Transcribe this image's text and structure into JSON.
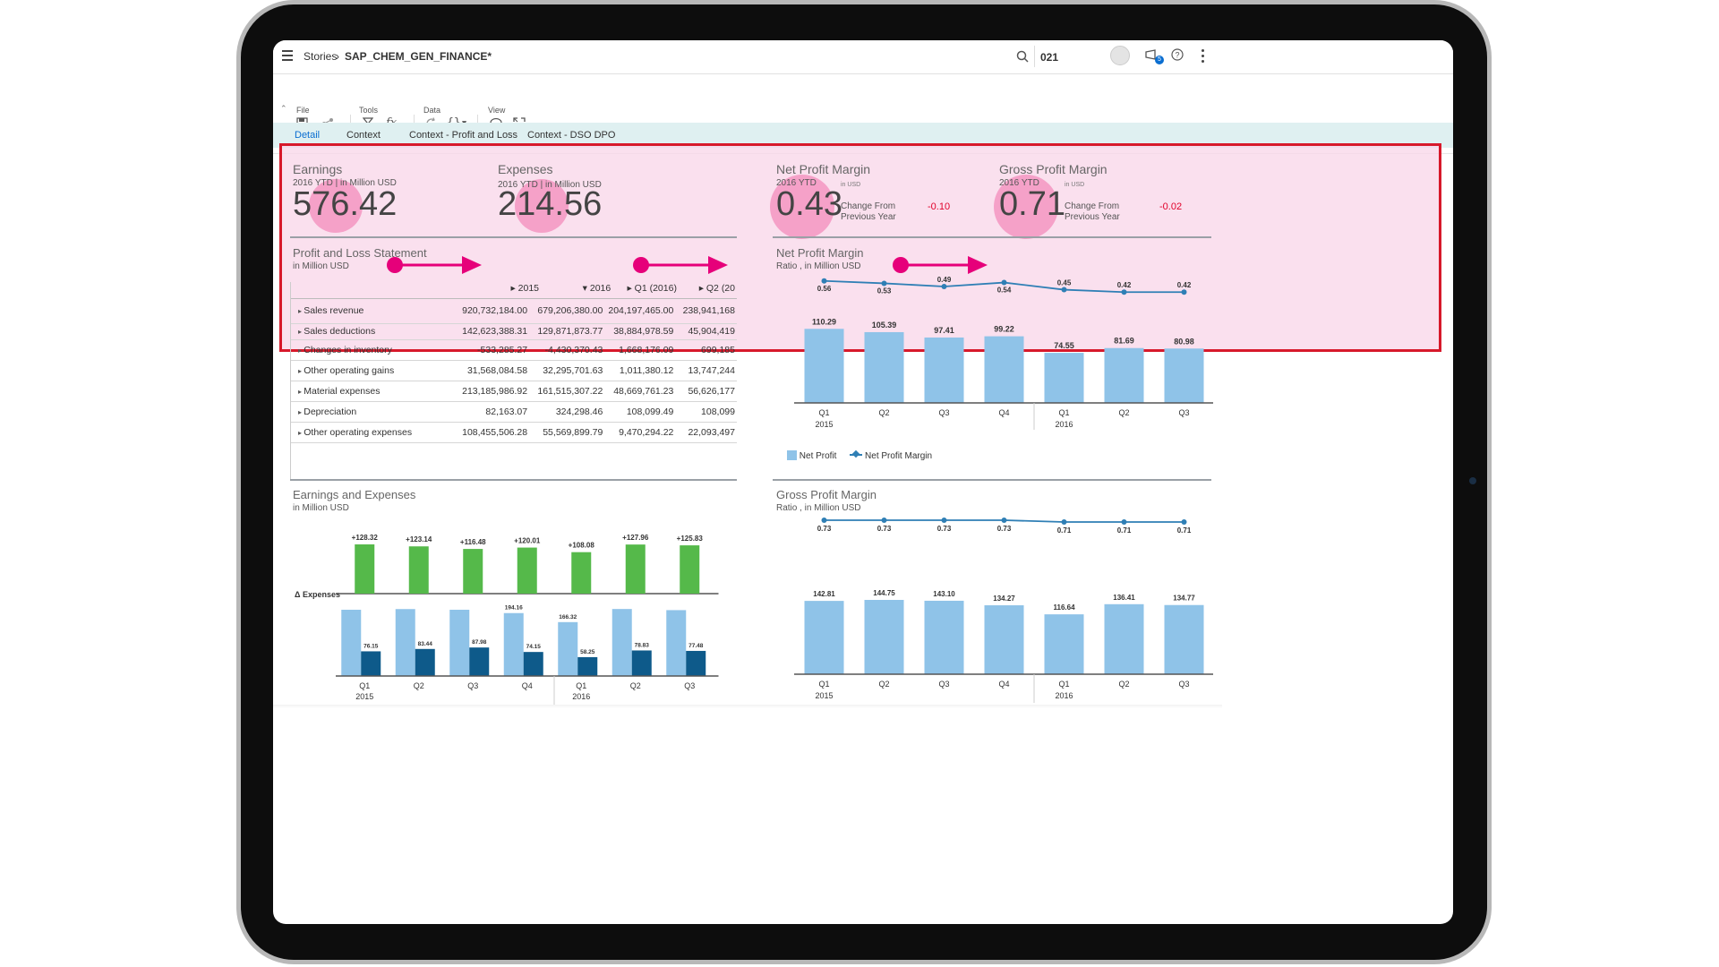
{
  "shell": {
    "breadcrumb_root": "Stories",
    "breadcrumb_sep": "›",
    "story_title": "SAP_CHEM_GEN_FINANCE*",
    "search_value": "021",
    "notification_count": "5"
  },
  "toolbar": {
    "groups": [
      {
        "label": "File"
      },
      {
        "label": "Tools"
      },
      {
        "label": "Data"
      },
      {
        "label": "View"
      }
    ]
  },
  "tabs": [
    {
      "label": "Detail",
      "active": true
    },
    {
      "label": "Context",
      "active": false
    },
    {
      "label": "Context - Profit and Loss",
      "active": false
    },
    {
      "label": "Context - DSO DPO",
      "active": false
    }
  ],
  "kpis": {
    "earnings": {
      "title": "Earnings",
      "subtitle": "2016 YTD | in Million USD",
      "value": "576.42"
    },
    "expenses": {
      "title": "Expenses",
      "subtitle": "2016 YTD | in Million USD",
      "value": "214.56"
    },
    "net_profit_margin": {
      "title": "Net Profit Margin",
      "period": "2016 YTD",
      "unit": "in USD",
      "value": "0.43",
      "change_label_1": "Change From",
      "change_label_2": "Previous Year",
      "change_value": "-0.10"
    },
    "gross_profit_margin": {
      "title": "Gross Profit Margin",
      "period": "2016 YTD",
      "unit": "in USD",
      "value": "0.71",
      "change_label_1": "Change From",
      "change_label_2": "Previous Year",
      "change_value": "-0.02"
    }
  },
  "pl_statement": {
    "title": "Profit and Loss Statement",
    "subtitle": "in Million USD",
    "columns": [
      "2015",
      "2016",
      "Q1 (2016)",
      "Q2 (20"
    ],
    "rows": [
      {
        "label": "Sales revenue",
        "values": [
          "920,732,184.00",
          "679,206,380.00",
          "204,197,465.00",
          "238,941,168"
        ]
      },
      {
        "label": "Sales deductions",
        "values": [
          "142,623,388.31",
          "129,871,873.77",
          "38,884,978.59",
          "45,904,419"
        ]
      },
      {
        "label": "Changes in inventory",
        "values": [
          "-533,285.27",
          "-4,430,370.43",
          "1,668,176.09",
          "699,185"
        ]
      },
      {
        "label": "Other operating gains",
        "values": [
          "31,568,084.58",
          "32,295,701.63",
          "1,011,380.12",
          "13,747,244"
        ]
      },
      {
        "label": "Material expenses",
        "values": [
          "213,185,986.92",
          "161,515,307.22",
          "48,669,761.23",
          "56,626,177"
        ]
      },
      {
        "label": "Depreciation",
        "values": [
          "82,163.07",
          "324,298.46",
          "108,099.49",
          "108,099"
        ]
      },
      {
        "label": "Other operating expenses",
        "values": [
          "108,455,506.28",
          "55,569,899.79",
          "9,470,294.22",
          "22,093,497"
        ]
      }
    ]
  },
  "colors": {
    "bar_light": "#8fc3e8",
    "bar_dark": "#0e5a8a",
    "bar_green": "#55b94a",
    "line": "#2f7fb5",
    "negative": "#e1002a",
    "highlight_border": "#d7192b",
    "marker": "#e6007a"
  },
  "chart_data": [
    {
      "id": "net-profit",
      "type": "bar+line",
      "title": "Net Profit Margin",
      "subtitle": "Ratio , in Million USD",
      "categories": [
        "Q1",
        "Q2",
        "Q3",
        "Q4",
        "Q1",
        "Q2",
        "Q3"
      ],
      "year_labels": [
        {
          "label": "2015",
          "index": 0
        },
        {
          "label": "2016",
          "index": 4
        }
      ],
      "series": [
        {
          "name": "Net Profit",
          "kind": "bar",
          "values": [
            110.29,
            105.39,
            97.41,
            99.22,
            74.55,
            81.69,
            80.98
          ]
        },
        {
          "name": "Net Profit Margin",
          "kind": "line",
          "values": [
            0.56,
            0.53,
            0.49,
            0.54,
            0.45,
            0.42,
            0.42
          ]
        }
      ],
      "legend": "bottom-left"
    },
    {
      "id": "earnings-expenses",
      "type": "bar",
      "title": "Earnings and Expenses",
      "subtitle": "in Million USD",
      "delta_label": "Δ Expenses",
      "categories": [
        "Q1",
        "Q2",
        "Q3",
        "Q4",
        "Q1",
        "Q2",
        "Q3"
      ],
      "year_labels": [
        {
          "label": "2015",
          "index": 0
        },
        {
          "label": "2016",
          "index": 4
        }
      ],
      "series": [
        {
          "kind": "delta",
          "values": [
            128.32,
            123.14,
            116.48,
            120.01,
            108.08,
            127.96,
            125.83
          ],
          "labels": [
            "+128.32",
            "+123.14",
            "+116.48",
            "+120.01",
            "+108.08",
            "+127.96",
            "+125.83"
          ]
        },
        {
          "kind": "earnings",
          "values": [
            204.47,
            206.58,
            204.46,
            194.16,
            166.32,
            206.79,
            203.31
          ],
          "labels": [
            "",
            "",
            "",
            "194.16",
            "166.32",
            "",
            ""
          ]
        },
        {
          "kind": "expenses",
          "values": [
            76.15,
            83.44,
            87.98,
            74.15,
            58.25,
            78.83,
            77.48
          ],
          "labels": [
            "76.15",
            "83.44",
            "87.98",
            "74.15",
            "58.25",
            "78.83",
            "77.48"
          ]
        }
      ]
    },
    {
      "id": "gross-profit",
      "type": "bar+line",
      "title": "Gross Profit Margin",
      "subtitle": "Ratio , in Million USD",
      "categories": [
        "Q1",
        "Q2",
        "Q3",
        "Q4",
        "Q1",
        "Q2",
        "Q3"
      ],
      "year_labels": [
        {
          "label": "2015",
          "index": 0
        },
        {
          "label": "2016",
          "index": 4
        }
      ],
      "series": [
        {
          "kind": "line",
          "values": [
            0.73,
            0.73,
            0.73,
            0.73,
            0.71,
            0.71,
            0.71
          ]
        },
        {
          "kind": "bar",
          "values": [
            142.81,
            144.75,
            143.1,
            134.27,
            116.64,
            136.41,
            134.77
          ]
        }
      ]
    }
  ]
}
